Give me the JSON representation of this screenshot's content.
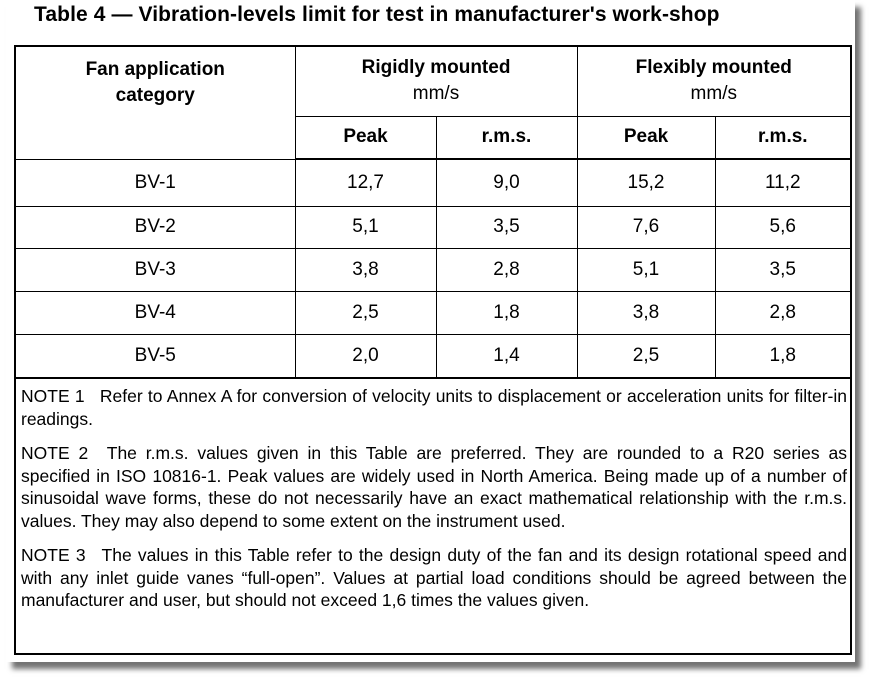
{
  "title": "Table 4 — Vibration-levels limit for test in manufacturer's work-shop",
  "table": {
    "header": {
      "category": [
        "Fan application",
        "category"
      ],
      "rigid": {
        "label": "Rigidly mounted",
        "unit": "mm/s"
      },
      "flexible": {
        "label": "Flexibly mounted",
        "unit": "mm/s"
      },
      "sub": [
        "Peak",
        "r.m.s.",
        "Peak",
        "r.m.s."
      ]
    },
    "rows": [
      {
        "category": "BV-1",
        "rigid_peak": "12,7",
        "rigid_rms": "9,0",
        "flex_peak": "15,2",
        "flex_rms": "11,2"
      },
      {
        "category": "BV-2",
        "rigid_peak": "5,1",
        "rigid_rms": "3,5",
        "flex_peak": "7,6",
        "flex_rms": "5,6"
      },
      {
        "category": "BV-3",
        "rigid_peak": "3,8",
        "rigid_rms": "2,8",
        "flex_peak": "5,1",
        "flex_rms": "3,5"
      },
      {
        "category": "BV-4",
        "rigid_peak": "2,5",
        "rigid_rms": "1,8",
        "flex_peak": "3,8",
        "flex_rms": "2,8"
      },
      {
        "category": "BV-5",
        "rigid_peak": "2,0",
        "rigid_rms": "1,4",
        "flex_peak": "2,5",
        "flex_rms": "1,8"
      }
    ]
  },
  "notes": [
    {
      "label": "NOTE 1",
      "text": "Refer to Annex A for conversion of velocity units to displacement or acceleration units for filter-in readings."
    },
    {
      "label": "NOTE 2",
      "text": "The r.m.s. values given in this Table are preferred. They are rounded to a R20 series as specified in ISO 10816-1. Peak values are widely used in North America. Being made up of a number of sinusoidal wave forms, these do not necessarily have an exact mathematical relationship with the r.m.s. values. They may also depend  to some extent on the instrument used."
    },
    {
      "label": "NOTE 3",
      "text": "The values in this Table refer to the design duty of the fan and its design rotational speed and with any inlet guide vanes “full-open”. Values at partial load conditions should be agreed between the manufacturer and user, but should not exceed 1,6 times the values given."
    }
  ]
}
